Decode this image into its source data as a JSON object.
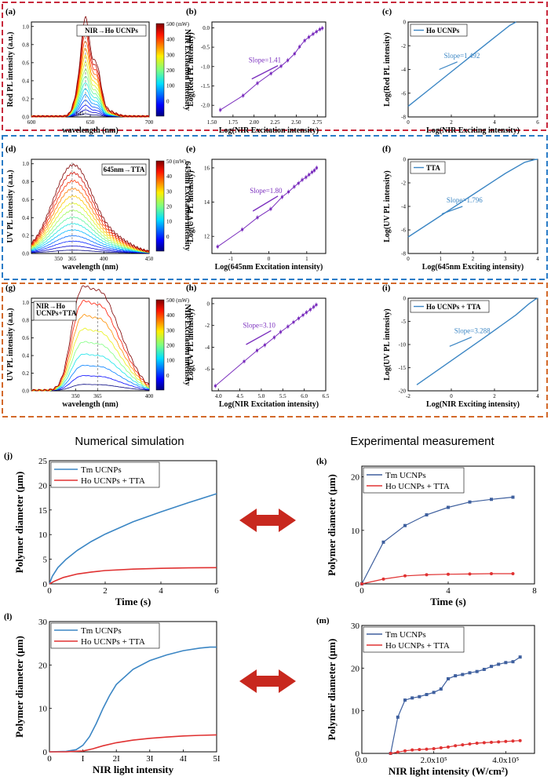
{
  "headings": {
    "left": "Numerical simulation",
    "right": "Experimental measurement"
  },
  "colors": {
    "box_red": "#c8283c",
    "box_blue": "#2a7cc7",
    "box_orange": "#d3692a",
    "blue": "#3b86c4",
    "red": "#e03232",
    "purple": "#7b2fbe",
    "exp_blue": "#3e5f9e",
    "arrow": "#c8281e"
  },
  "chart_data": [
    {
      "id": "a",
      "label": "(a)",
      "type": "line",
      "xlabel": "wavelength (nm)",
      "ylabel": "Red PL intensity (a.u.)",
      "xlim": [
        600,
        700
      ],
      "ylim": [
        0,
        1.05
      ],
      "xticks": [
        "600",
        "650",
        "700"
      ],
      "yticks": [
        "0.0",
        "0.2",
        "0.4",
        "0.6",
        "0.8",
        "1.0"
      ],
      "peak_label": "645",
      "annotation": "NIR→Ho UCNPs",
      "colorbar": {
        "label": "NIR Excitation intensity",
        "unit": "500 (mW)",
        "ticks": [
          "400",
          "300",
          "200",
          "100",
          "0"
        ]
      }
    },
    {
      "id": "b",
      "label": "(b)",
      "type": "scatter",
      "xlabel": "Log(NIR Excitation intensity)",
      "ylabel": "Log(Red PL intensity)",
      "xlim": [
        1.5,
        2.85
      ],
      "ylim": [
        -2.3,
        0.15
      ],
      "xticks": [
        "1.50",
        "1.75",
        "2.00",
        "2.25",
        "2.50",
        "2.75"
      ],
      "yticks": [
        "0.0",
        "-0.5",
        "-1.0",
        "-1.5",
        "-2.0"
      ],
      "slope_label": "Slope=1.41",
      "x": [
        1.6,
        1.87,
        2.04,
        2.2,
        2.32,
        2.4,
        2.48,
        2.54,
        2.6,
        2.65,
        2.7,
        2.74,
        2.78,
        2.81
      ],
      "y": [
        -2.12,
        -1.75,
        -1.43,
        -1.18,
        -0.99,
        -0.84,
        -0.67,
        -0.49,
        -0.33,
        -0.24,
        -0.16,
        -0.1,
        -0.04,
        -0.01
      ]
    },
    {
      "id": "c",
      "label": "(c)",
      "type": "line",
      "xlabel": "Log(NIR Exciting intensity)",
      "ylabel": "Log(Red PL intensity)",
      "xlim": [
        0,
        6
      ],
      "ylim": [
        -8,
        0
      ],
      "xticks": [
        "0",
        "2",
        "4",
        "6"
      ],
      "yticks": [
        "0",
        "-2",
        "-4",
        "-6",
        "-8"
      ],
      "legend": [
        "Ho UCNPs"
      ],
      "slope_label": "Slope=1.492",
      "x": [
        0,
        1,
        2,
        3,
        4,
        4.7,
        5
      ],
      "y": [
        -7.1,
        -5.65,
        -4.2,
        -2.75,
        -1.3,
        -0.3,
        0
      ]
    },
    {
      "id": "d",
      "label": "(d)",
      "type": "line",
      "xlabel": "wavelength (nm)",
      "ylabel": "UV PL intensity (a.u.)",
      "xlim": [
        320,
        450
      ],
      "ylim": [
        0,
        1.05
      ],
      "xticks": [
        "350",
        "365",
        "400",
        "450"
      ],
      "yticks": [
        "0.0",
        "0.2",
        "0.4",
        "0.6",
        "0.8",
        "1.0"
      ],
      "annotation": "645nm→TTA",
      "colorbar": {
        "label": "645nm Excitation intensity",
        "unit": "50 (mW)",
        "ticks": [
          "40",
          "30",
          "20",
          "10",
          "0"
        ]
      }
    },
    {
      "id": "e",
      "label": "(e)",
      "type": "scatter",
      "xlabel": "Log(645nm Excitation intensity)",
      "ylabel": "Log(UV PL intensity)",
      "xlim": [
        -1.5,
        1.5
      ],
      "ylim": [
        11,
        16.5
      ],
      "xticks": [
        "-1",
        "0",
        "1"
      ],
      "yticks": [
        "12",
        "14",
        "16"
      ],
      "slope_label": "Slope=1.80",
      "x": [
        -1.35,
        -0.7,
        -0.3,
        0.05,
        0.35,
        0.52,
        0.67,
        0.78,
        0.88,
        0.98,
        1.06,
        1.14,
        1.2,
        1.26
      ],
      "y": [
        11.4,
        12.4,
        13.1,
        13.6,
        14.3,
        14.6,
        14.9,
        15.1,
        15.3,
        15.45,
        15.6,
        15.75,
        15.85,
        16.0
      ]
    },
    {
      "id": "f",
      "label": "(f)",
      "type": "line",
      "xlabel": "Log(645nm Exciting intensity)",
      "ylabel": "Log(UV PL intensity)",
      "xlim": [
        0,
        4
      ],
      "ylim": [
        -8,
        0
      ],
      "xticks": [
        "0",
        "1",
        "2",
        "3",
        "4"
      ],
      "yticks": [
        "0",
        "-2",
        "-4",
        "-6",
        "-8"
      ],
      "legend": [
        "TTA"
      ],
      "slope_label": "Slope=1.796",
      "x": [
        0,
        1,
        2,
        3,
        3.6,
        3.9,
        4
      ],
      "y": [
        -6.6,
        -4.8,
        -3.0,
        -1.2,
        -0.25,
        -0.03,
        0
      ]
    },
    {
      "id": "g",
      "label": "(g)",
      "type": "line",
      "xlabel": "wavelength (nm)",
      "ylabel": "UV PL intensity (a.u.)",
      "xlim": [
        320,
        400
      ],
      "ylim": [
        0,
        1.05
      ],
      "xticks": [
        "350",
        "365",
        "400"
      ],
      "yticks": [
        "0.0",
        "0.2",
        "0.4",
        "0.6",
        "0.8",
        "1.0"
      ],
      "annotation": "NIR→Ho\nUCNPs+TTA",
      "colorbar": {
        "label": "NIR Excitation intensity",
        "unit": "500 (mW)",
        "ticks": [
          "400",
          "300",
          "200",
          "100",
          "0"
        ]
      }
    },
    {
      "id": "h",
      "label": "(h)",
      "type": "scatter",
      "xlabel": "Log(NIR Excitation intensity)",
      "ylabel": "Log(UV PL intensity)",
      "xlim": [
        3.85,
        6.5
      ],
      "ylim": [
        -8,
        0.5
      ],
      "xticks": [
        "4.0",
        "4.5",
        "5.0",
        "5.5",
        "6.0",
        "6.5"
      ],
      "yticks": [
        "0",
        "-2",
        "-4",
        "-6"
      ],
      "slope_label": "Slope=3.10",
      "x": [
        3.93,
        4.6,
        4.9,
        5.08,
        5.3,
        5.45,
        5.62,
        5.75,
        5.87,
        5.97,
        6.05,
        6.14,
        6.22,
        6.28
      ],
      "y": [
        -7.55,
        -5.3,
        -4.3,
        -3.8,
        -3.1,
        -2.6,
        -2.1,
        -1.7,
        -1.35,
        -1.05,
        -0.8,
        -0.55,
        -0.3,
        -0.1
      ]
    },
    {
      "id": "i",
      "label": "(i)",
      "type": "line",
      "xlabel": "Log(NIR Exciting intensity)",
      "ylabel": "Log(UV PL intensity)",
      "xlim": [
        -2,
        4
      ],
      "ylim": [
        -20,
        0
      ],
      "xticks": [
        "-2",
        "0",
        "2",
        "4"
      ],
      "yticks": [
        "0",
        "-5",
        "-10",
        "-15",
        "-20"
      ],
      "legend": [
        "Ho UCNPs + TTA"
      ],
      "slope_label": "Slope=3.288",
      "x": [
        -1.6,
        0,
        1.5,
        3,
        3.6,
        3.9,
        4
      ],
      "y": [
        -18.7,
        -13.5,
        -8.6,
        -3.6,
        -1.2,
        -0.2,
        0
      ]
    },
    {
      "id": "j",
      "label": "(j)",
      "type": "line",
      "xlabel": "Time (s)",
      "ylabel": "Polymer diameter (μm)",
      "xlim": [
        0,
        6
      ],
      "ylim": [
        0,
        25
      ],
      "xticks": [
        "0",
        "2",
        "4",
        "6"
      ],
      "yticks": [
        "0",
        "5",
        "10",
        "15",
        "20",
        "25"
      ],
      "series": [
        {
          "name": "Tm UCNPs",
          "x": [
            0,
            0.1,
            0.3,
            0.6,
            1,
            1.5,
            2,
            3,
            4,
            5,
            6
          ],
          "y": [
            0,
            1.5,
            3.3,
            5,
            6.8,
            8.6,
            10.1,
            12.6,
            14.6,
            16.5,
            18.3
          ]
        },
        {
          "name": "Ho UCNPs + TTA",
          "x": [
            0,
            0.2,
            0.5,
            1,
            1.5,
            2,
            3,
            4,
            5,
            6
          ],
          "y": [
            0,
            0.6,
            1.3,
            2.0,
            2.4,
            2.7,
            3.0,
            3.15,
            3.25,
            3.3
          ]
        }
      ]
    },
    {
      "id": "k",
      "label": "(k)",
      "type": "line",
      "xlabel": "Time (s)",
      "ylabel": "Polymer diameter (μm)",
      "xlim": [
        0,
        8
      ],
      "ylim": [
        0,
        22
      ],
      "xticks": [
        "0",
        "4",
        "8"
      ],
      "yticks": [
        "0",
        "10",
        "20"
      ],
      "series": [
        {
          "name": "Tm UCNPs",
          "x": [
            0,
            1,
            2,
            3,
            4,
            5,
            6,
            7
          ],
          "y": [
            0,
            7.8,
            10.9,
            12.9,
            14.3,
            15.3,
            15.8,
            16.2
          ]
        },
        {
          "name": "Ho UCNPs + TTA",
          "x": [
            0,
            1,
            2,
            3,
            4,
            5,
            6,
            7
          ],
          "y": [
            0,
            0.9,
            1.5,
            1.7,
            1.8,
            1.85,
            1.9,
            1.9
          ]
        }
      ]
    },
    {
      "id": "l",
      "label": "(l)",
      "type": "line",
      "xlabel": "NIR light intensity",
      "ylabel": "Polymer diameter (μm)",
      "xlim": [
        0,
        5
      ],
      "ylim": [
        0,
        30
      ],
      "xticks": [
        "0",
        "I",
        "2I",
        "3I",
        "4I",
        "5I"
      ],
      "yticks": [
        "0",
        "10",
        "20",
        "30"
      ],
      "series": [
        {
          "name": "Tm UCNPs",
          "x": [
            0,
            0.5,
            0.8,
            1,
            1.2,
            1.4,
            1.6,
            1.8,
            2,
            2.5,
            3,
            3.5,
            4,
            4.5,
            4.8,
            5
          ],
          "y": [
            0,
            0.1,
            0.5,
            1.5,
            3.5,
            6.5,
            10,
            13,
            15.5,
            19,
            21,
            22.3,
            23.3,
            23.9,
            24.1,
            24.1
          ]
        },
        {
          "name": "Ho UCNPs + TTA",
          "x": [
            0,
            0.5,
            1,
            1.3,
            1.6,
            2,
            2.5,
            3,
            3.5,
            4,
            4.5,
            5
          ],
          "y": [
            0,
            0.02,
            0.2,
            0.7,
            1.4,
            2.1,
            2.7,
            3.1,
            3.4,
            3.65,
            3.8,
            3.9
          ]
        }
      ]
    },
    {
      "id": "m",
      "label": "(m)",
      "type": "line",
      "xlabel": "NIR light intensity (W/cm²)",
      "ylabel": "Polymer diameter (μm)",
      "xlim": [
        0,
        480000
      ],
      "ylim": [
        0,
        30
      ],
      "xticks": [
        "0.0",
        "2.0x10⁵",
        "4.0x10⁵"
      ],
      "yticks": [
        "0",
        "10",
        "20",
        "30"
      ],
      "series": [
        {
          "name": "Tm UCNPs",
          "x": [
            80000,
            100000,
            120000,
            140000,
            160000,
            180000,
            200000,
            220000,
            240000,
            260000,
            280000,
            300000,
            320000,
            340000,
            360000,
            380000,
            400000,
            420000,
            440000
          ],
          "y": [
            0,
            8.5,
            12.5,
            13,
            13.3,
            13.8,
            14.3,
            15.1,
            17.5,
            18.2,
            18.5,
            18.9,
            19.2,
            19.7,
            20.4,
            20.9,
            21.3,
            21.5,
            22.6
          ]
        },
        {
          "name": "Ho UCNPs + TTA",
          "x": [
            80000,
            100000,
            120000,
            140000,
            160000,
            180000,
            200000,
            220000,
            240000,
            260000,
            280000,
            300000,
            320000,
            340000,
            360000,
            380000,
            400000,
            420000,
            440000
          ],
          "y": [
            0,
            0.3,
            0.6,
            0.8,
            0.9,
            1.0,
            1.1,
            1.3,
            1.5,
            1.8,
            2.0,
            2.2,
            2.4,
            2.5,
            2.6,
            2.7,
            2.8,
            2.9,
            3.0
          ]
        }
      ]
    }
  ]
}
